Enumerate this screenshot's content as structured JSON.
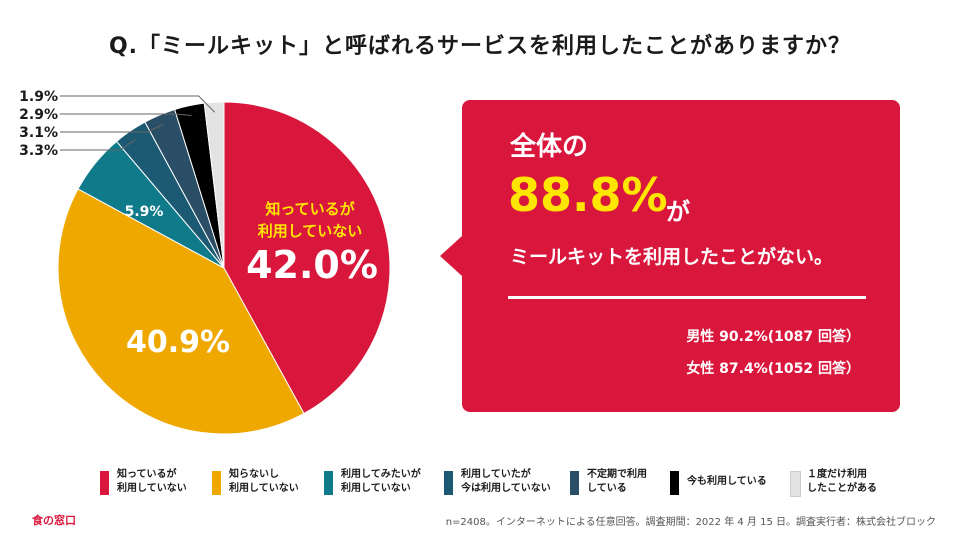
{
  "title": "Q.「ミールキット」と呼ばれるサービスを利用したことがありますか？",
  "chart_data": {
    "type": "pie",
    "title": "Q.「ミールキット」と呼ばれるサービスを利用したことがありますか？",
    "slices": [
      {
        "name": "知っているが\n利用していない",
        "value": 42.0,
        "color": "#d9173c",
        "label": "42.0%"
      },
      {
        "name": "知らないし\n利用していない",
        "value": 40.9,
        "color": "#efa800",
        "label": "40.9%"
      },
      {
        "name": "利用してみたいが\n利用していない",
        "value": 5.9,
        "color": "#0f7b8a",
        "label": "5.9%"
      },
      {
        "name": "利用していたが\n今は利用していない",
        "value": 3.3,
        "color": "#1b5a72",
        "label": "3.3%"
      },
      {
        "name": "不定期で利用\nしている",
        "value": 3.1,
        "color": "#2a4e66",
        "label": "3.1%"
      },
      {
        "name": "今も利用している",
        "value": 2.9,
        "color": "#000000",
        "label": "2.9%"
      },
      {
        "name": "１度だけ利用\nしたことがある",
        "value": 1.9,
        "color": "#e3e3e3",
        "label": "1.9%"
      }
    ],
    "inside_label_red": "知っているが\n利用していない",
    "inside_label_red_color": "#ffe600"
  },
  "callout": {
    "lead": "全体の",
    "big": "88.8%",
    "ga": "が",
    "text": "ミールキットを利用したことがない。",
    "male": "男性 90.2%(1087 回答）",
    "female": "女性 87.4%(1052 回答）"
  },
  "footer": {
    "left": "食の窓口",
    "right": "n=2408。インターネットによる任意回答。調査期間：2022 年 4 月 15 日。調査実行者：株式会社ブロック"
  }
}
